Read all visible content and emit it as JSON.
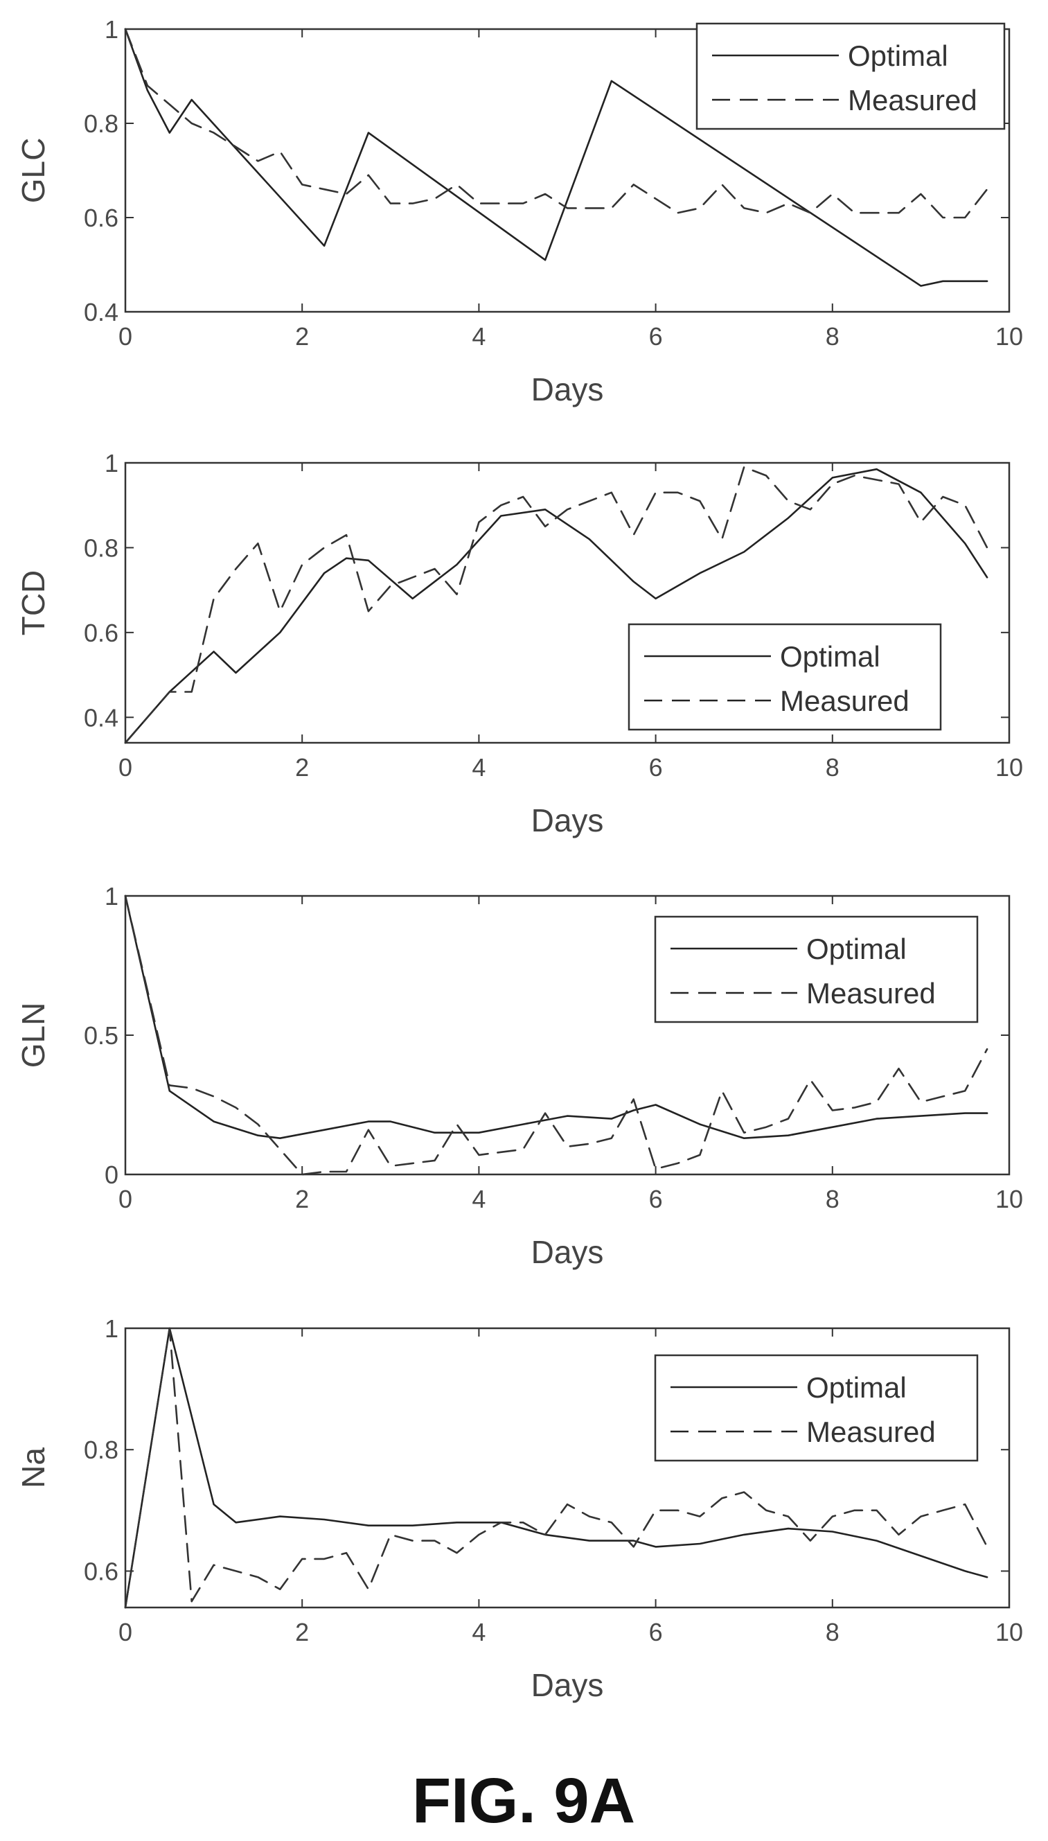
{
  "figure": {
    "caption": "FIG. 9A"
  },
  "chart_data": [
    {
      "type": "line",
      "title": "",
      "xlabel": "Days",
      "ylabel": "GLC",
      "xlim": [
        0,
        10
      ],
      "ylim": [
        0.4,
        1
      ],
      "xticks": [
        0,
        2,
        4,
        6,
        8,
        10
      ],
      "yticks": [
        0.4,
        0.6,
        0.8,
        1
      ],
      "ytick_labels": [
        "0.4",
        "0.6",
        "0.8",
        "1"
      ],
      "legend": "top-right",
      "series": [
        {
          "name": "Optimal",
          "style": "solid",
          "x": [
            0,
            0.25,
            0.5,
            0.75,
            2.25,
            2.75,
            4.75,
            5.5,
            9.0,
            9.25,
            9.75
          ],
          "y": [
            1.0,
            0.87,
            0.78,
            0.85,
            0.54,
            0.78,
            0.51,
            0.89,
            0.455,
            0.465,
            0.465
          ]
        },
        {
          "name": "Measured",
          "style": "dashed",
          "x": [
            0,
            0.25,
            0.5,
            0.75,
            1.0,
            1.25,
            1.5,
            1.75,
            2.0,
            2.25,
            2.5,
            2.75,
            3.0,
            3.25,
            3.5,
            3.75,
            4.0,
            4.25,
            4.5,
            4.75,
            5.0,
            5.25,
            5.5,
            5.75,
            6.0,
            6.25,
            6.5,
            6.75,
            7.0,
            7.25,
            7.5,
            7.75,
            8.0,
            8.25,
            8.5,
            8.75,
            9.0,
            9.25,
            9.5,
            9.75
          ],
          "y": [
            1.0,
            0.88,
            0.84,
            0.8,
            0.78,
            0.75,
            0.72,
            0.74,
            0.67,
            0.66,
            0.65,
            0.69,
            0.63,
            0.63,
            0.64,
            0.67,
            0.63,
            0.63,
            0.63,
            0.65,
            0.62,
            0.62,
            0.62,
            0.67,
            0.64,
            0.61,
            0.62,
            0.67,
            0.62,
            0.61,
            0.63,
            0.61,
            0.65,
            0.61,
            0.61,
            0.61,
            0.65,
            0.6,
            0.6,
            0.66
          ]
        }
      ]
    },
    {
      "type": "line",
      "title": "",
      "xlabel": "Days",
      "ylabel": "TCD",
      "xlim": [
        0,
        10
      ],
      "ylim": [
        0.34,
        1
      ],
      "xticks": [
        0,
        2,
        4,
        6,
        8,
        10
      ],
      "yticks": [
        0.4,
        0.6,
        0.8,
        1
      ],
      "ytick_labels": [
        "0.4",
        "0.6",
        "0.8",
        "1"
      ],
      "legend": "lower-right",
      "series": [
        {
          "name": "Optimal",
          "style": "solid",
          "x": [
            0,
            0.5,
            1.0,
            1.25,
            1.75,
            2.25,
            2.5,
            2.75,
            3.25,
            3.75,
            4.25,
            4.75,
            5.25,
            5.75,
            6.0,
            6.5,
            7.0,
            7.5,
            8.0,
            8.5,
            9.0,
            9.5,
            9.75
          ],
          "y": [
            0.34,
            0.46,
            0.555,
            0.505,
            0.6,
            0.74,
            0.775,
            0.77,
            0.68,
            0.76,
            0.875,
            0.89,
            0.82,
            0.72,
            0.68,
            0.74,
            0.79,
            0.87,
            0.965,
            0.985,
            0.93,
            0.81,
            0.73
          ]
        },
        {
          "name": "Measured",
          "style": "dashed",
          "x": [
            0,
            0.5,
            0.75,
            1.0,
            1.25,
            1.5,
            1.75,
            2.0,
            2.25,
            2.5,
            2.75,
            3.0,
            3.25,
            3.5,
            3.75,
            4.0,
            4.25,
            4.5,
            4.75,
            5.0,
            5.25,
            5.5,
            5.75,
            6.0,
            6.25,
            6.5,
            6.75,
            7.0,
            7.25,
            7.5,
            7.75,
            8.0,
            8.25,
            8.5,
            8.75,
            9.0,
            9.25,
            9.5,
            9.75
          ],
          "y": [
            0.34,
            0.46,
            0.46,
            0.68,
            0.75,
            0.81,
            0.65,
            0.76,
            0.8,
            0.83,
            0.65,
            0.71,
            0.73,
            0.75,
            0.69,
            0.86,
            0.9,
            0.92,
            0.85,
            0.89,
            0.91,
            0.93,
            0.83,
            0.93,
            0.93,
            0.91,
            0.82,
            0.99,
            0.97,
            0.91,
            0.89,
            0.95,
            0.97,
            0.96,
            0.95,
            0.86,
            0.92,
            0.9,
            0.8
          ]
        }
      ]
    },
    {
      "type": "line",
      "title": "",
      "xlabel": "Days",
      "ylabel": "GLN",
      "xlim": [
        0,
        10
      ],
      "ylim": [
        0,
        1
      ],
      "xticks": [
        0,
        2,
        4,
        6,
        8,
        10
      ],
      "yticks": [
        0,
        0.5,
        1
      ],
      "ytick_labels": [
        "0",
        "0.5",
        "1"
      ],
      "legend": "top-right",
      "series": [
        {
          "name": "Optimal",
          "style": "solid",
          "x": [
            0,
            0.5,
            1.0,
            1.5,
            1.75,
            2.25,
            2.75,
            3.0,
            3.5,
            4.0,
            4.5,
            5.0,
            5.5,
            5.75,
            6.0,
            6.5,
            7.0,
            7.5,
            8.0,
            8.5,
            9.0,
            9.5,
            9.75
          ],
          "y": [
            1.0,
            0.3,
            0.19,
            0.14,
            0.13,
            0.16,
            0.19,
            0.19,
            0.15,
            0.15,
            0.18,
            0.21,
            0.2,
            0.23,
            0.25,
            0.18,
            0.13,
            0.14,
            0.17,
            0.2,
            0.21,
            0.22,
            0.22
          ]
        },
        {
          "name": "Measured",
          "style": "dashed",
          "x": [
            0,
            0.5,
            0.75,
            1.0,
            1.25,
            1.5,
            2.0,
            2.25,
            2.5,
            2.75,
            3.0,
            3.25,
            3.5,
            3.75,
            4.0,
            4.25,
            4.5,
            4.75,
            5.0,
            5.25,
            5.5,
            5.75,
            6.0,
            6.25,
            6.5,
            6.75,
            7.0,
            7.25,
            7.5,
            7.75,
            8.0,
            8.25,
            8.5,
            8.75,
            9.0,
            9.25,
            9.5,
            9.75
          ],
          "y": [
            1.0,
            0.32,
            0.31,
            0.28,
            0.24,
            0.18,
            0.0,
            0.01,
            0.01,
            0.16,
            0.03,
            0.04,
            0.05,
            0.18,
            0.07,
            0.08,
            0.09,
            0.22,
            0.1,
            0.11,
            0.13,
            0.27,
            0.02,
            0.04,
            0.07,
            0.3,
            0.15,
            0.17,
            0.2,
            0.34,
            0.23,
            0.24,
            0.26,
            0.38,
            0.26,
            0.28,
            0.3,
            0.45
          ]
        }
      ]
    },
    {
      "type": "line",
      "title": "",
      "xlabel": "Days",
      "ylabel": "Na",
      "xlim": [
        0,
        10
      ],
      "ylim": [
        0.54,
        1
      ],
      "xticks": [
        0,
        2,
        4,
        6,
        8,
        10
      ],
      "yticks": [
        0.6,
        0.8,
        1
      ],
      "ytick_labels": [
        "0.6",
        "0.8",
        "1"
      ],
      "legend": "top-right",
      "series": [
        {
          "name": "Optimal",
          "style": "solid",
          "x": [
            0,
            0.5,
            1.0,
            1.25,
            1.75,
            2.25,
            2.75,
            3.25,
            3.75,
            4.25,
            4.75,
            5.25,
            5.75,
            6.0,
            6.5,
            7.0,
            7.5,
            8.0,
            8.5,
            9.0,
            9.5,
            9.75
          ],
          "y": [
            0.54,
            1.0,
            0.71,
            0.68,
            0.69,
            0.685,
            0.675,
            0.675,
            0.68,
            0.68,
            0.66,
            0.65,
            0.65,
            0.64,
            0.645,
            0.66,
            0.67,
            0.665,
            0.65,
            0.625,
            0.6,
            0.59
          ]
        },
        {
          "name": "Measured",
          "style": "dashed",
          "x": [
            0,
            0.5,
            0.75,
            1.0,
            1.25,
            1.5,
            1.75,
            2.0,
            2.25,
            2.5,
            2.75,
            3.0,
            3.25,
            3.5,
            3.75,
            4.0,
            4.25,
            4.5,
            4.75,
            5.0,
            5.25,
            5.5,
            5.75,
            6.0,
            6.25,
            6.5,
            6.75,
            7.0,
            7.25,
            7.5,
            7.75,
            8.0,
            8.25,
            8.5,
            8.75,
            9.0,
            9.25,
            9.5,
            9.75
          ],
          "y": [
            0.54,
            1.0,
            0.55,
            0.61,
            0.6,
            0.59,
            0.57,
            0.62,
            0.62,
            0.63,
            0.57,
            0.66,
            0.65,
            0.65,
            0.63,
            0.66,
            0.68,
            0.68,
            0.66,
            0.71,
            0.69,
            0.68,
            0.64,
            0.7,
            0.7,
            0.69,
            0.72,
            0.73,
            0.7,
            0.69,
            0.65,
            0.69,
            0.7,
            0.7,
            0.66,
            0.69,
            0.7,
            0.71,
            0.64
          ]
        }
      ]
    }
  ]
}
